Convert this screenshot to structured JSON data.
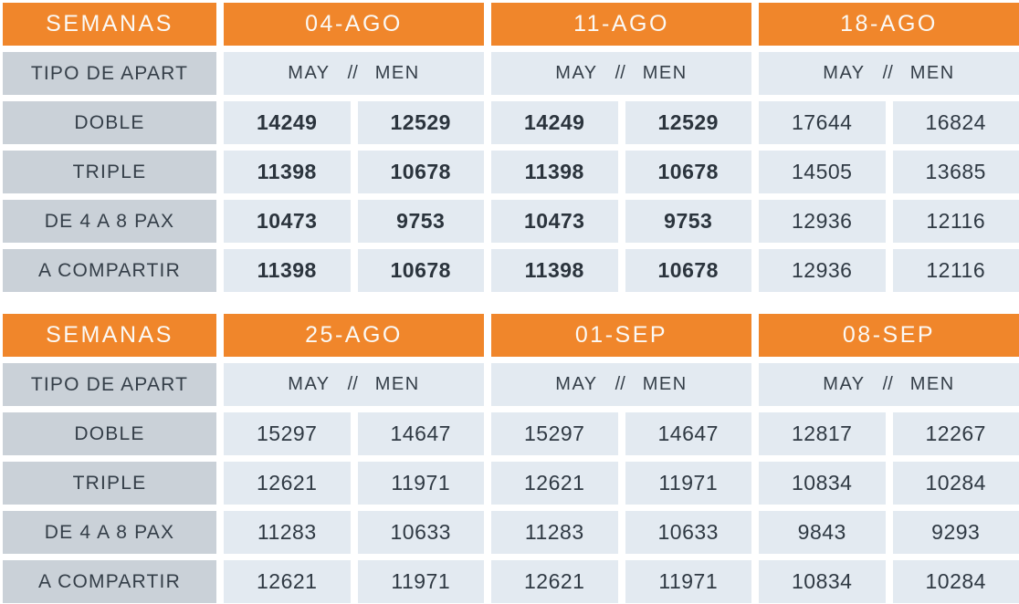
{
  "colors": {
    "accent_orange": "#F0862B",
    "header_text": "#FBF9F5",
    "label_cell_bg": "#CAD1D8",
    "data_cell_bg": "#E3EAF1",
    "dark_text": "#2F3943"
  },
  "tables": [
    {
      "title": "SEMANAS",
      "type_label": "TIPO DE APART",
      "col_subheader": {
        "may": "MAY",
        "sep": "//",
        "men": "MEN"
      },
      "weeks": [
        "04-AGO",
        "11-AGO",
        "18-AGO"
      ],
      "rows": [
        {
          "label": "DOBLE",
          "values": [
            "14249",
            "12529",
            "14249",
            "12529",
            "17644",
            "16824"
          ]
        },
        {
          "label": "TRIPLE",
          "values": [
            "11398",
            "10678",
            "11398",
            "10678",
            "14505",
            "13685"
          ]
        },
        {
          "label": "DE 4 A 8 PAX",
          "values": [
            "10473",
            "9753",
            "10473",
            "9753",
            "12936",
            "12116"
          ]
        },
        {
          "label": "A COMPARTIR",
          "values": [
            "11398",
            "10678",
            "11398",
            "10678",
            "12936",
            "12116"
          ]
        }
      ]
    },
    {
      "title": "SEMANAS",
      "type_label": "TIPO DE APART",
      "col_subheader": {
        "may": "MAY",
        "sep": "//",
        "men": "MEN"
      },
      "weeks": [
        "25-AGO",
        "01-SEP",
        "08-SEP"
      ],
      "rows": [
        {
          "label": "DOBLE",
          "values": [
            "15297",
            "14647",
            "15297",
            "14647",
            "12817",
            "12267"
          ]
        },
        {
          "label": "TRIPLE",
          "values": [
            "12621",
            "11971",
            "12621",
            "11971",
            "10834",
            "10284"
          ]
        },
        {
          "label": "DE 4 A 8 PAX",
          "values": [
            "11283",
            "10633",
            "11283",
            "10633",
            "9843",
            "9293"
          ]
        },
        {
          "label": "A COMPARTIR",
          "values": [
            "12621",
            "11971",
            "12621",
            "11971",
            "10834",
            "10284"
          ]
        }
      ]
    }
  ]
}
